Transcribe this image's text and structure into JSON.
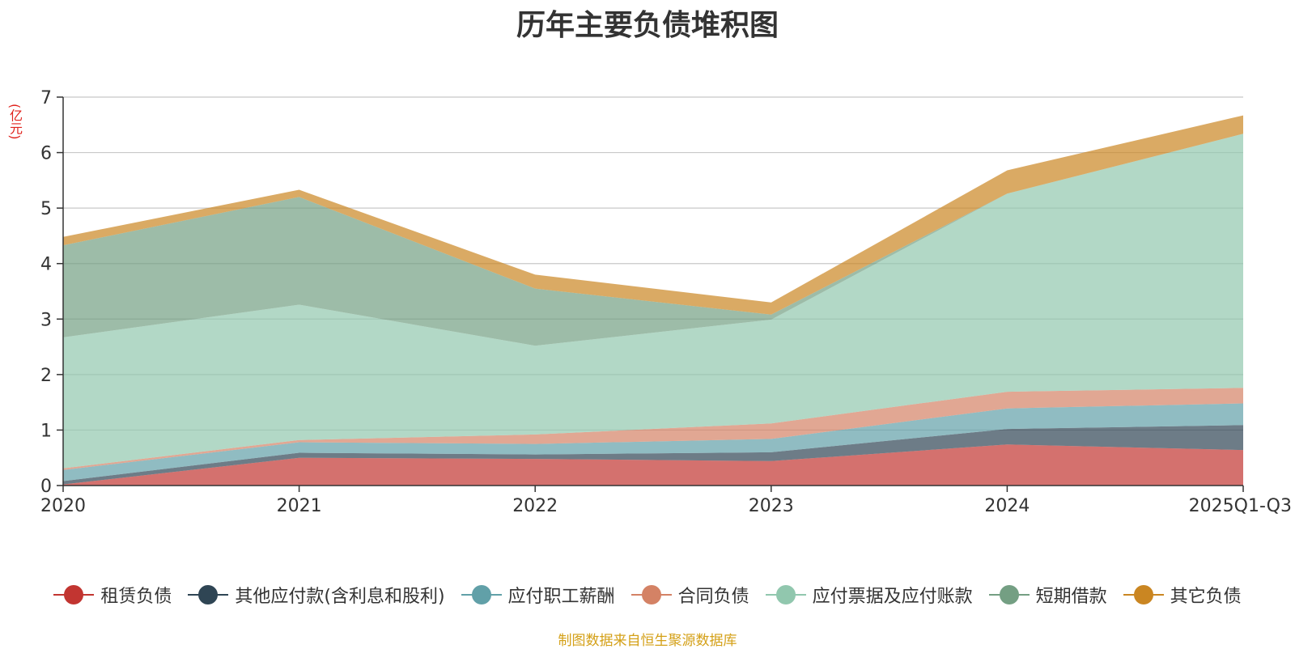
{
  "chart_data": {
    "type": "area",
    "stacked": true,
    "title": "历年主要负债堆积图",
    "ylabel": "(亿元)",
    "xlabel": "",
    "categories": [
      "2020",
      "2021",
      "2022",
      "2023",
      "2024",
      "2025Q1-Q3"
    ],
    "ylim": [
      0,
      7
    ],
    "yticks": [
      0,
      1,
      2,
      3,
      4,
      5,
      6,
      7
    ],
    "grid": true,
    "legend_position": "bottom",
    "series": [
      {
        "name": "租赁负债",
        "color": "#c23531",
        "values": [
          0.02,
          0.5,
          0.48,
          0.44,
          0.74,
          0.64
        ]
      },
      {
        "name": "其他应付款(含利息和股利)",
        "color": "#2f4554",
        "values": [
          0.06,
          0.09,
          0.08,
          0.16,
          0.28,
          0.45
        ]
      },
      {
        "name": "应付职工薪酬",
        "color": "#61a0a8",
        "values": [
          0.2,
          0.19,
          0.19,
          0.24,
          0.37,
          0.39
        ]
      },
      {
        "name": "合同负债",
        "color": "#d48265",
        "values": [
          0.03,
          0.04,
          0.17,
          0.28,
          0.3,
          0.28
        ]
      },
      {
        "name": "应付票据及应付账款",
        "color": "#91c7ae",
        "values": [
          2.36,
          2.44,
          1.6,
          1.87,
          3.57,
          4.58
        ]
      },
      {
        "name": "短期借款",
        "color": "#749f83",
        "values": [
          1.66,
          1.94,
          1.03,
          0.09,
          0.0,
          0.0
        ]
      },
      {
        "name": "其它负债",
        "color": "#ca8622",
        "values": [
          0.15,
          0.13,
          0.25,
          0.22,
          0.42,
          0.33
        ]
      }
    ],
    "source": "制图数据来自恒生聚源数据库"
  }
}
